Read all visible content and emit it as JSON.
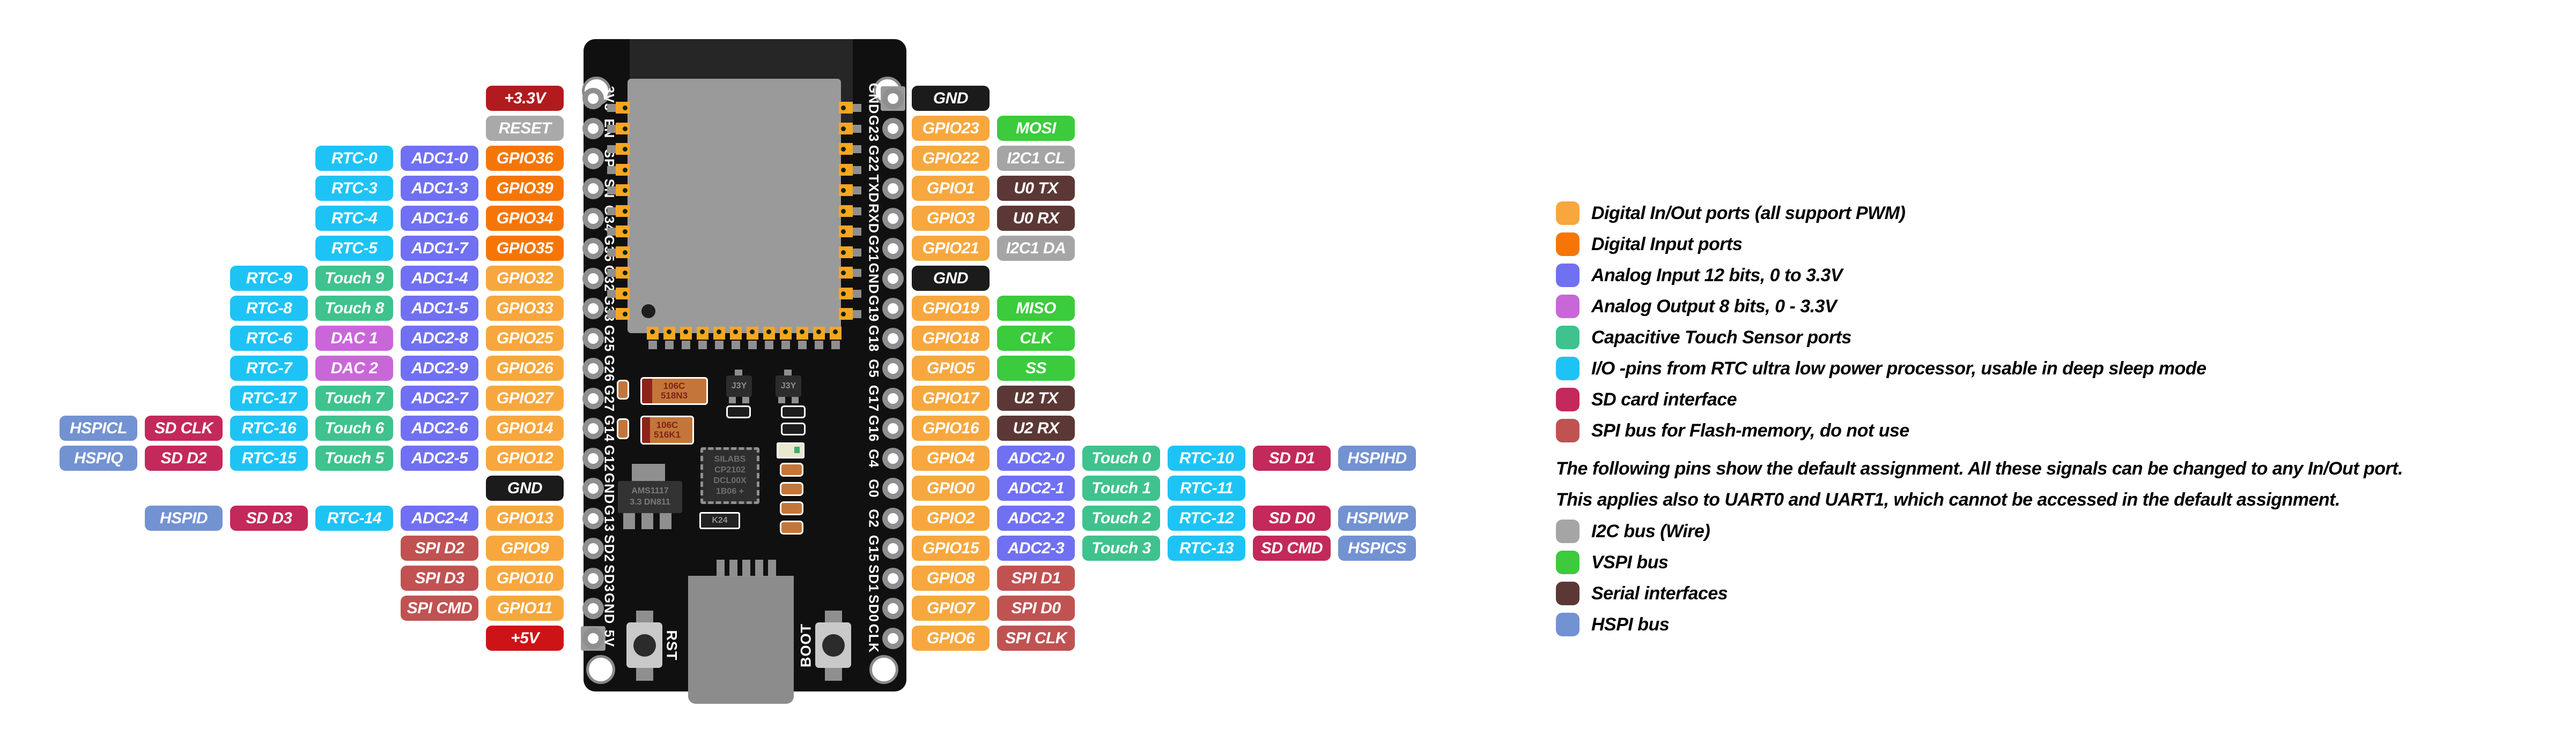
{
  "colors": {
    "gpio": "#f7a73e",
    "gpio_in": "#f57606",
    "adc": "#7070f2",
    "touch": "#3fc28d",
    "rtc": "#1ec3f5",
    "dac": "#c967d8",
    "sd": "#c3295a",
    "spi_flash": "#c05252",
    "hspi": "#7392d2",
    "vspi": "#3bcb3c",
    "i2c": "#a5a5a5",
    "serial": "#5b3836",
    "gnd": "#1b1b1b",
    "power_3v3": "#b21b1e",
    "power_5v": "#ce1316",
    "reset": "#a9a9a9"
  },
  "left_rows": [
    [
      {
        "label": "+3.3V",
        "type": "power_3v3"
      }
    ],
    [
      {
        "label": "RESET",
        "type": "reset"
      }
    ],
    [
      {
        "label": "RTC-0",
        "type": "rtc"
      },
      {
        "label": "ADC1-0",
        "type": "adc"
      },
      {
        "label": "GPIO36",
        "type": "gpio_in"
      }
    ],
    [
      {
        "label": "RTC-3",
        "type": "rtc"
      },
      {
        "label": "ADC1-3",
        "type": "adc"
      },
      {
        "label": "GPIO39",
        "type": "gpio_in"
      }
    ],
    [
      {
        "label": "RTC-4",
        "type": "rtc"
      },
      {
        "label": "ADC1-6",
        "type": "adc"
      },
      {
        "label": "GPIO34",
        "type": "gpio_in"
      }
    ],
    [
      {
        "label": "RTC-5",
        "type": "rtc"
      },
      {
        "label": "ADC1-7",
        "type": "adc"
      },
      {
        "label": "GPIO35",
        "type": "gpio_in"
      }
    ],
    [
      {
        "label": "RTC-9",
        "type": "rtc"
      },
      {
        "label": "Touch 9",
        "type": "touch"
      },
      {
        "label": "ADC1-4",
        "type": "adc"
      },
      {
        "label": "GPIO32",
        "type": "gpio"
      }
    ],
    [
      {
        "label": "RTC-8",
        "type": "rtc"
      },
      {
        "label": "Touch 8",
        "type": "touch"
      },
      {
        "label": "ADC1-5",
        "type": "adc"
      },
      {
        "label": "GPIO33",
        "type": "gpio"
      }
    ],
    [
      {
        "label": "RTC-6",
        "type": "rtc"
      },
      {
        "label": "DAC 1",
        "type": "dac"
      },
      {
        "label": "ADC2-8",
        "type": "adc"
      },
      {
        "label": "GPIO25",
        "type": "gpio"
      }
    ],
    [
      {
        "label": "RTC-7",
        "type": "rtc"
      },
      {
        "label": "DAC 2",
        "type": "dac"
      },
      {
        "label": "ADC2-9",
        "type": "adc"
      },
      {
        "label": "GPIO26",
        "type": "gpio"
      }
    ],
    [
      {
        "label": "RTC-17",
        "type": "rtc"
      },
      {
        "label": "Touch 7",
        "type": "touch"
      },
      {
        "label": "ADC2-7",
        "type": "adc"
      },
      {
        "label": "GPIO27",
        "type": "gpio"
      }
    ],
    [
      {
        "label": "HSPICL",
        "type": "hspi"
      },
      {
        "label": "SD CLK",
        "type": "sd"
      },
      {
        "label": "RTC-16",
        "type": "rtc"
      },
      {
        "label": "Touch 6",
        "type": "touch"
      },
      {
        "label": "ADC2-6",
        "type": "adc"
      },
      {
        "label": "GPIO14",
        "type": "gpio"
      }
    ],
    [
      {
        "label": "HSPIQ",
        "type": "hspi"
      },
      {
        "label": "SD D2",
        "type": "sd"
      },
      {
        "label": "RTC-15",
        "type": "rtc"
      },
      {
        "label": "Touch 5",
        "type": "touch"
      },
      {
        "label": "ADC2-5",
        "type": "adc"
      },
      {
        "label": "GPIO12",
        "type": "gpio"
      }
    ],
    [
      {
        "label": "GND",
        "type": "gnd"
      }
    ],
    [
      {
        "label": "HSPID",
        "type": "hspi"
      },
      {
        "label": "SD D3",
        "type": "sd"
      },
      {
        "label": "RTC-14",
        "type": "rtc"
      },
      {
        "label": "ADC2-4",
        "type": "adc"
      },
      {
        "label": "GPIO13",
        "type": "gpio"
      }
    ],
    [
      {
        "label": "SPI D2",
        "type": "spi_flash"
      },
      {
        "label": "GPIO9",
        "type": "gpio"
      }
    ],
    [
      {
        "label": "SPI D3",
        "type": "spi_flash"
      },
      {
        "label": "GPIO10",
        "type": "gpio"
      }
    ],
    [
      {
        "label": "SPI CMD",
        "type": "spi_flash"
      },
      {
        "label": "GPIO11",
        "type": "gpio"
      }
    ],
    [
      {
        "label": "+5V",
        "type": "power_5v"
      }
    ]
  ],
  "right_rows": [
    [
      {
        "label": "GND",
        "type": "gnd"
      }
    ],
    [
      {
        "label": "GPIO23",
        "type": "gpio"
      },
      {
        "label": "MOSI",
        "type": "vspi"
      }
    ],
    [
      {
        "label": "GPIO22",
        "type": "gpio"
      },
      {
        "label": "I2C1 CL",
        "type": "i2c"
      }
    ],
    [
      {
        "label": "GPIO1",
        "type": "gpio"
      },
      {
        "label": "U0 TX",
        "type": "serial"
      }
    ],
    [
      {
        "label": "GPIO3",
        "type": "gpio"
      },
      {
        "label": "U0 RX",
        "type": "serial"
      }
    ],
    [
      {
        "label": "GPIO21",
        "type": "gpio"
      },
      {
        "label": "I2C1 DA",
        "type": "i2c"
      }
    ],
    [
      {
        "label": "GND",
        "type": "gnd"
      }
    ],
    [
      {
        "label": "GPIO19",
        "type": "gpio"
      },
      {
        "label": "MISO",
        "type": "vspi"
      }
    ],
    [
      {
        "label": "GPIO18",
        "type": "gpio"
      },
      {
        "label": "CLK",
        "type": "vspi"
      }
    ],
    [
      {
        "label": "GPIO5",
        "type": "gpio"
      },
      {
        "label": "SS",
        "type": "vspi"
      }
    ],
    [
      {
        "label": "GPIO17",
        "type": "gpio"
      },
      {
        "label": "U2 TX",
        "type": "serial"
      }
    ],
    [
      {
        "label": "GPIO16",
        "type": "gpio"
      },
      {
        "label": "U2 RX",
        "type": "serial"
      }
    ],
    [
      {
        "label": "GPIO4",
        "type": "gpio"
      },
      {
        "label": "ADC2-0",
        "type": "adc"
      },
      {
        "label": "Touch 0",
        "type": "touch"
      },
      {
        "label": "RTC-10",
        "type": "rtc"
      },
      {
        "label": "SD D1",
        "type": "sd"
      },
      {
        "label": "HSPIHD",
        "type": "hspi"
      }
    ],
    [
      {
        "label": "GPIO0",
        "type": "gpio"
      },
      {
        "label": "ADC2-1",
        "type": "adc"
      },
      {
        "label": "Touch 1",
        "type": "touch"
      },
      {
        "label": "RTC-11",
        "type": "rtc"
      }
    ],
    [
      {
        "label": "GPIO2",
        "type": "gpio"
      },
      {
        "label": "ADC2-2",
        "type": "adc"
      },
      {
        "label": "Touch 2",
        "type": "touch"
      },
      {
        "label": "RTC-12",
        "type": "rtc"
      },
      {
        "label": "SD D0",
        "type": "sd"
      },
      {
        "label": "HSPIWP",
        "type": "hspi"
      }
    ],
    [
      {
        "label": "GPIO15",
        "type": "gpio"
      },
      {
        "label": "ADC2-3",
        "type": "adc"
      },
      {
        "label": "Touch 3",
        "type": "touch"
      },
      {
        "label": "RTC-13",
        "type": "rtc"
      },
      {
        "label": "SD CMD",
        "type": "sd"
      },
      {
        "label": "HSPICS",
        "type": "hspi"
      }
    ],
    [
      {
        "label": "GPIO8",
        "type": "gpio"
      },
      {
        "label": "SPI D1",
        "type": "spi_flash"
      }
    ],
    [
      {
        "label": "GPIO7",
        "type": "gpio"
      },
      {
        "label": "SPI D0",
        "type": "spi_flash"
      }
    ],
    [
      {
        "label": "GPIO6",
        "type": "gpio"
      },
      {
        "label": "SPI CLK",
        "type": "spi_flash"
      }
    ]
  ],
  "board": {
    "silk_left": [
      "3V3",
      "EN",
      "SP",
      "SN",
      "G34",
      "G35",
      "G32",
      "G33",
      "G25",
      "G26",
      "G27",
      "G14",
      "G12",
      "GND",
      "G13",
      "SD2",
      "SD3",
      "GND",
      "5V"
    ],
    "silk_right": [
      "GND",
      "G23",
      "G22",
      "TXD",
      "RXD",
      "G21",
      "GND",
      "G19",
      "G18",
      "G5",
      "G17",
      "G16",
      "G4",
      "G0",
      "G2",
      "G15",
      "SD1",
      "SD0",
      "CLK"
    ],
    "rst_label": "RST",
    "boot_label": "BOOT",
    "cap1": [
      "106C",
      "518N3"
    ],
    "cap2": [
      "106C",
      "516K1"
    ],
    "transistor_label": "J3Y",
    "usb_bridge": [
      "SILABS",
      "CP2102",
      "DCL00X",
      "1B06 +"
    ],
    "regulator": [
      "AMS1117",
      "3.3 DN811"
    ],
    "resnet_label": "K24"
  },
  "legend": {
    "items": [
      {
        "label": "Digital In/Out ports (all support PWM)",
        "type": "gpio"
      },
      {
        "label": "Digital Input ports",
        "type": "gpio_in"
      },
      {
        "label": "Analog Input 12 bits, 0 to 3.3V",
        "type": "adc"
      },
      {
        "label": "Analog Output 8 bits, 0 - 3.3V",
        "type": "dac"
      },
      {
        "label": "Capacitive Touch Sensor ports",
        "type": "touch"
      },
      {
        "label": "I/O -pins from RTC ultra low power processor, usable in deep sleep mode",
        "type": "rtc"
      },
      {
        "label": "SD card interface",
        "type": "sd"
      },
      {
        "label": "SPI bus for Flash-memory, do not use",
        "type": "spi_flash"
      }
    ],
    "note_line1": "The following pins show the default assignment. All these signals can be changed to any In/Out port.",
    "note_line2": "This applies also to UART0 and UART1, which cannot be accessed in the default assignment.",
    "items2": [
      {
        "label": "I2C bus (Wire)",
        "type": "i2c"
      },
      {
        "label": "VSPI bus",
        "type": "vspi"
      },
      {
        "label": "Serial interfaces",
        "type": "serial"
      },
      {
        "label": "HSPI bus",
        "type": "hspi"
      }
    ]
  }
}
